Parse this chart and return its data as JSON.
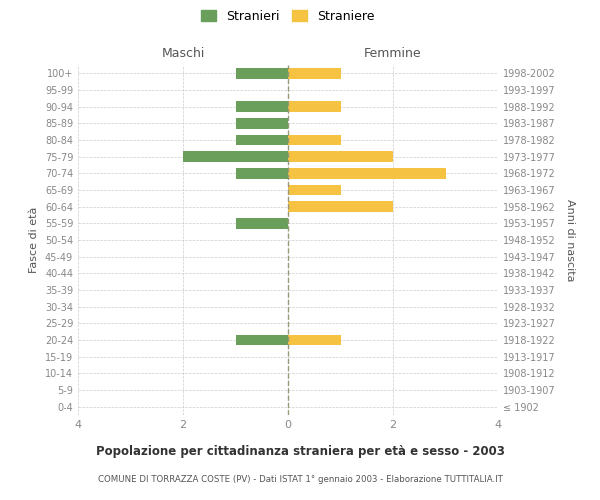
{
  "age_groups": [
    "0-4",
    "5-9",
    "10-14",
    "15-19",
    "20-24",
    "25-29",
    "30-34",
    "35-39",
    "40-44",
    "45-49",
    "50-54",
    "55-59",
    "60-64",
    "65-69",
    "70-74",
    "75-79",
    "80-84",
    "85-89",
    "90-94",
    "95-99",
    "100+"
  ],
  "birth_years": [
    "1998-2002",
    "1993-1997",
    "1988-1992",
    "1983-1987",
    "1978-1982",
    "1973-1977",
    "1968-1972",
    "1963-1967",
    "1958-1962",
    "1953-1957",
    "1948-1952",
    "1943-1947",
    "1938-1942",
    "1933-1937",
    "1928-1932",
    "1923-1927",
    "1918-1922",
    "1913-1917",
    "1908-1912",
    "1903-1907",
    "≤ 1902"
  ],
  "maschi": [
    1,
    0,
    1,
    1,
    1,
    2,
    1,
    0,
    0,
    1,
    0,
    0,
    0,
    0,
    0,
    0,
    1,
    0,
    0,
    0,
    0
  ],
  "femmine": [
    1,
    0,
    1,
    0,
    1,
    2,
    3,
    1,
    2,
    0,
    0,
    0,
    0,
    0,
    0,
    0,
    1,
    0,
    0,
    0,
    0
  ],
  "color_maschi": "#6a9e5b",
  "color_femmine": "#f5c242",
  "title_main": "Popolazione per cittadinanza straniera per età e sesso - 2003",
  "title_sub": "COMUNE DI TORRAZZA COSTE (PV) - Dati ISTAT 1° gennaio 2003 - Elaborazione TUTTITALIA.IT",
  "xlabel_left": "Maschi",
  "xlabel_right": "Femmine",
  "ylabel_left": "Fasce di età",
  "ylabel_right": "Anni di nascita",
  "legend_maschi": "Stranieri",
  "legend_femmine": "Straniere",
  "xlim": [
    -4,
    4
  ],
  "bar_height": 0.65,
  "bg_color": "#ffffff",
  "grid_color": "#cccccc",
  "text_color": "#888888",
  "axis_label_color": "#555555"
}
